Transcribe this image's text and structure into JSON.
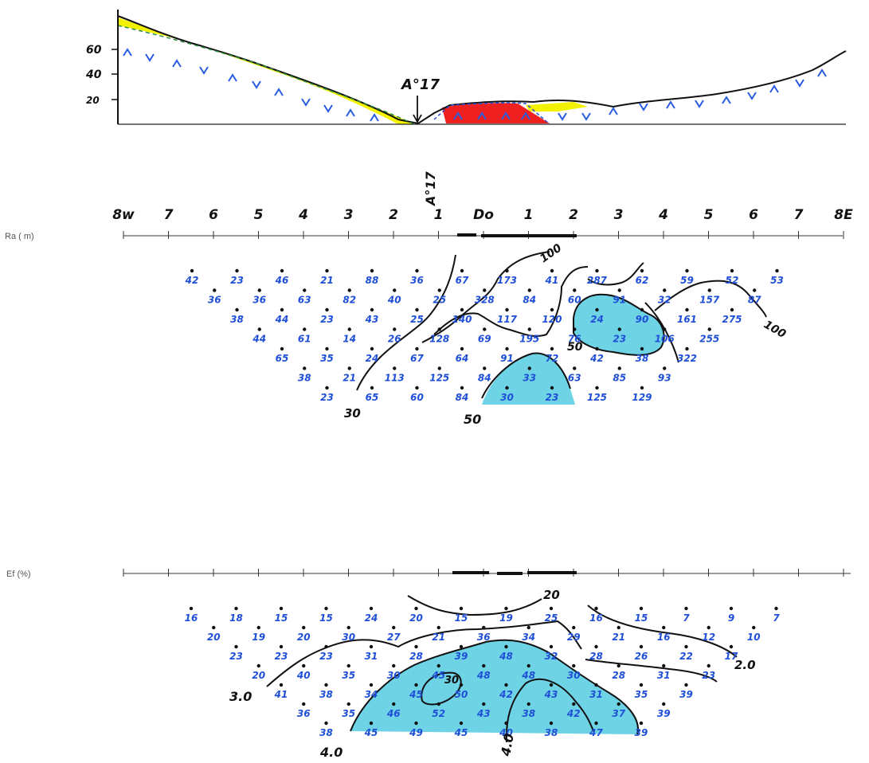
{
  "topo": {
    "y_ticks": [
      "60",
      "40",
      "20"
    ],
    "marker_label": "A°17"
  },
  "axis": {
    "ticks": [
      "8w",
      "7",
      "6",
      "5",
      "4",
      "3",
      "2",
      "1",
      "Do",
      "1",
      "2",
      "3",
      "4",
      "5",
      "6",
      "7",
      "8E"
    ],
    "marker_label": "A°17"
  },
  "ra": {
    "label": "Ra  ( m)",
    "values": [
      [
        "42",
        "23",
        "46",
        "21",
        "88",
        "36",
        "67",
        "173",
        "41",
        "287",
        "62",
        "59",
        "52",
        "53"
      ],
      [
        "36",
        "36",
        "63",
        "82",
        "40",
        "25",
        "328",
        "84",
        "60",
        "91",
        "32",
        "157",
        "87"
      ],
      [
        "38",
        "44",
        "23",
        "43",
        "25",
        "140",
        "117",
        "120",
        "24",
        "90",
        "161",
        "275"
      ],
      [
        "44",
        "61",
        "14",
        "26",
        "128",
        "69",
        "195",
        "76",
        "23",
        "106",
        "255"
      ],
      [
        "65",
        "35",
        "24",
        "67",
        "64",
        "91",
        "72",
        "42",
        "38",
        "322"
      ],
      [
        "38",
        "21",
        "113",
        "125",
        "84",
        "33",
        "63",
        "85",
        "93"
      ],
      [
        "23",
        "65",
        "60",
        "84",
        "30",
        "23",
        "125",
        "129"
      ]
    ],
    "contour_labels": [
      "100",
      "100",
      "50",
      "30",
      "50"
    ]
  },
  "ef": {
    "label": "Ef  (%)",
    "values": [
      [
        "16",
        "18",
        "15",
        "15",
        "24",
        "20",
        "15",
        "19",
        "25",
        "16",
        "15",
        "7",
        "9",
        "7"
      ],
      [
        "20",
        "19",
        "20",
        "30",
        "27",
        "21",
        "36",
        "34",
        "29",
        "21",
        "16",
        "12",
        "10"
      ],
      [
        "23",
        "23",
        "23",
        "31",
        "28",
        "39",
        "48",
        "32",
        "28",
        "26",
        "22",
        "17"
      ],
      [
        "20",
        "40",
        "35",
        "30",
        "45",
        "48",
        "48",
        "30",
        "28",
        "31",
        "23"
      ],
      [
        "41",
        "38",
        "34",
        "45",
        "50",
        "42",
        "43",
        "31",
        "35",
        "39"
      ],
      [
        "36",
        "35",
        "46",
        "52",
        "43",
        "38",
        "42",
        "37",
        "39"
      ],
      [
        "38",
        "45",
        "49",
        "45",
        "40",
        "38",
        "47",
        "39"
      ]
    ],
    "contour_labels": [
      "20",
      "2.0",
      "3.0",
      "30",
      "4.0",
      "4.0"
    ]
  },
  "colors": {
    "yellow": "#f2f200",
    "red": "#ee2020",
    "cyan": "#6fd3e6",
    "blue_text": "#1f4fd6",
    "ink": "#111111"
  }
}
